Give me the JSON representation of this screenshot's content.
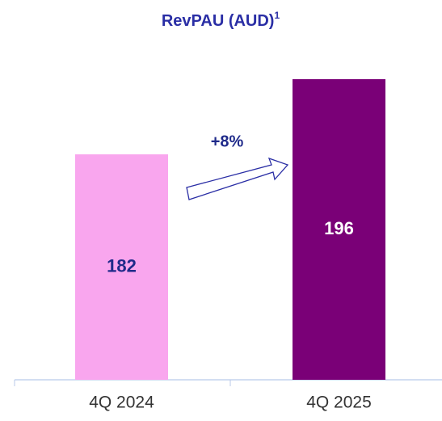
{
  "chart_data": {
    "type": "bar",
    "title": "RevPAU (AUD)",
    "title_superscript": "1",
    "categories": [
      "4Q 2024",
      "4Q 2025"
    ],
    "values": [
      182,
      196
    ],
    "colors": [
      "#f9a6ee",
      "#7a0077"
    ],
    "annotation": "+8%",
    "ylim": [
      140,
      200
    ]
  }
}
